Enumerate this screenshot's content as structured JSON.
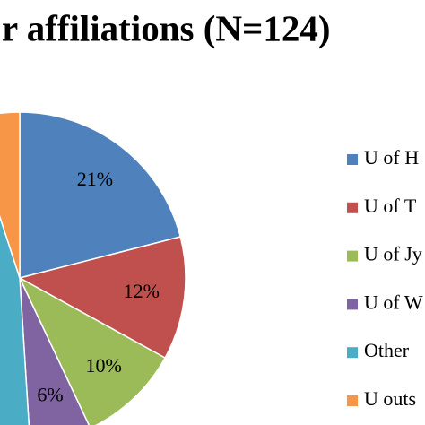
{
  "chart_data": {
    "type": "pie",
    "title": "r affiliations (N=124)",
    "categories": [
      "U of H",
      "U of T",
      "U of Jy",
      "U of W",
      "Other",
      "U outs"
    ],
    "values": [
      21,
      12,
      10,
      6,
      46,
      5
    ],
    "value_labels": [
      "21%",
      "12%",
      "10%",
      "6%",
      null,
      null
    ],
    "colors": [
      "#4f81bd",
      "#c0504d",
      "#9bbb59",
      "#8064a2",
      "#4bacc6",
      "#f79646"
    ],
    "legend": "right"
  }
}
